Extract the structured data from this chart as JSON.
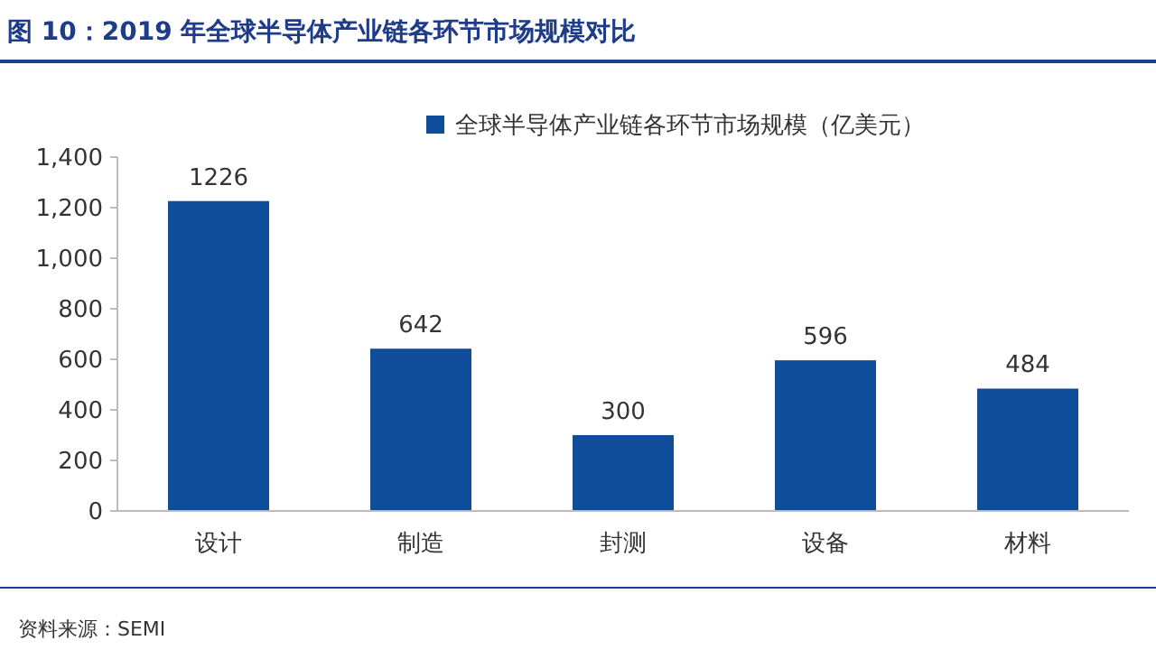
{
  "chart_data": {
    "type": "bar",
    "title": "图 10：2019 年全球半导体产业链各环节市场规模对比",
    "categories": [
      "设计",
      "制造",
      "封测",
      "设备",
      "材料"
    ],
    "series": [
      {
        "name": "全球半导体产业链各环节市场规模（亿美元）",
        "color": "#0f4c99",
        "values": [
          1226,
          642,
          300,
          596,
          484
        ]
      }
    ],
    "ylim": [
      0,
      1400
    ],
    "yticks": [
      0,
      200,
      400,
      600,
      800,
      {
        "value": 1000,
        "label": "1,000"
      },
      {
        "value": 1200,
        "label": "1,200"
      },
      {
        "value": 1400,
        "label": "1,400"
      }
    ],
    "data_labels": true,
    "legend": "top",
    "grid": false,
    "annotations": [
      "资料来源：SEMI"
    ]
  }
}
